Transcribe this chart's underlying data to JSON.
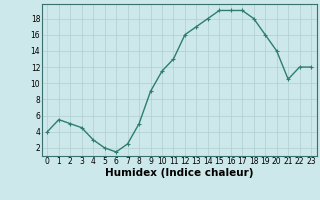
{
  "x": [
    0,
    1,
    2,
    3,
    4,
    5,
    6,
    7,
    8,
    9,
    10,
    11,
    12,
    13,
    14,
    15,
    16,
    17,
    18,
    19,
    20,
    21,
    22,
    23
  ],
  "y": [
    4,
    5.5,
    5,
    4.5,
    3,
    2,
    1.5,
    2.5,
    5,
    9,
    11.5,
    13,
    16,
    17,
    18,
    19,
    19,
    19,
    18,
    16,
    14,
    10.5,
    12,
    12
  ],
  "line_color": "#2e7d6e",
  "marker": "+",
  "marker_size": 3,
  "xlabel": "Humidex (Indice chaleur)",
  "xlim": [
    -0.5,
    23.5
  ],
  "ylim": [
    1,
    19.8
  ],
  "yticks": [
    2,
    4,
    6,
    8,
    10,
    12,
    14,
    16,
    18
  ],
  "xticks": [
    0,
    1,
    2,
    3,
    4,
    5,
    6,
    7,
    8,
    9,
    10,
    11,
    12,
    13,
    14,
    15,
    16,
    17,
    18,
    19,
    20,
    21,
    22,
    23
  ],
  "bg_color": "#cce8ea",
  "grid_color": "#b0cdd0",
  "tick_label_fontsize": 5.5,
  "xlabel_fontsize": 7.5,
  "line_width": 1.0,
  "marker_edge_width": 0.8
}
